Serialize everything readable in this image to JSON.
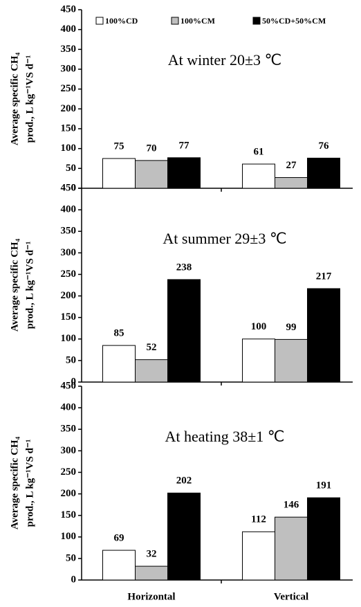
{
  "chart_data": [
    {
      "type": "bar",
      "title": "At winter 20±3 ℃",
      "ylabel": [
        "Average specific CH₄",
        "prod., L kg⁻¹VS d⁻¹"
      ],
      "series": [
        {
          "name": "100%CD",
          "color": "#ffffff",
          "values": [
            75,
            61
          ]
        },
        {
          "name": "100%CM",
          "color": "#bfbfbf",
          "values": [
            70,
            27
          ]
        },
        {
          "name": "50%CD+50%CM",
          "color": "#000000",
          "values": [
            77,
            76
          ]
        }
      ],
      "ylim": [
        0,
        450
      ],
      "yticks": [
        0,
        50,
        100,
        150,
        200,
        250,
        300,
        350,
        400,
        450
      ],
      "legend": "top"
    },
    {
      "type": "bar",
      "title": "At summer 29±3 ℃",
      "ylabel": [
        "Average specific CH₄",
        "prod., L kg⁻¹VS d⁻¹"
      ],
      "series": [
        {
          "color": "#ffffff",
          "values": [
            85,
            100
          ]
        },
        {
          "color": "#bfbfbf",
          "values": [
            52,
            99
          ]
        },
        {
          "color": "#000000",
          "values": [
            238,
            217
          ]
        }
      ],
      "ylim": [
        0,
        450
      ],
      "yticks": [
        0,
        50,
        100,
        150,
        200,
        250,
        300,
        350,
        400,
        450
      ]
    },
    {
      "type": "bar",
      "title": "At heating 38±1 ℃",
      "ylabel": [
        "Average specific CH₄",
        "prod., L kg⁻¹VS d⁻¹"
      ],
      "categories": [
        "Horizontal",
        "Vertical"
      ],
      "series": [
        {
          "color": "#ffffff",
          "values": [
            69,
            112
          ]
        },
        {
          "color": "#bfbfbf",
          "values": [
            32,
            146
          ]
        },
        {
          "color": "#000000",
          "values": [
            202,
            191
          ]
        }
      ],
      "ylim": [
        0,
        450
      ],
      "yticks": [
        0,
        50,
        100,
        150,
        200,
        250,
        300,
        350,
        400,
        450
      ]
    }
  ]
}
